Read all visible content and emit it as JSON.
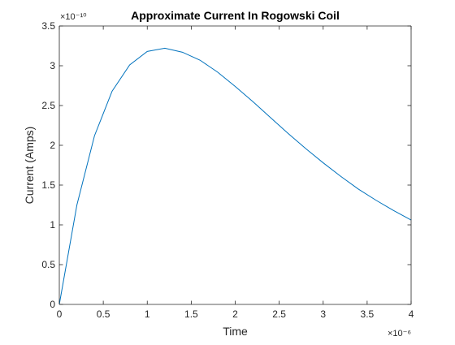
{
  "chart_data": {
    "type": "line",
    "title": "Approximate Current In Rogowski Coil",
    "xlabel": "Time",
    "ylabel": "Current (Amps)",
    "x_exponent_label": "×10⁻⁶",
    "y_exponent_label": "×10⁻¹⁰",
    "xlim": [
      0,
      4e-06
    ],
    "ylim": [
      0,
      3.5e-10
    ],
    "x_ticks": [
      0,
      5e-07,
      1e-06,
      1.5e-06,
      2e-06,
      2.5e-06,
      3e-06,
      3.5e-06,
      4e-06
    ],
    "x_tick_labels": [
      "0",
      "0.5",
      "1",
      "1.5",
      "2",
      "2.5",
      "3",
      "3.5",
      "4"
    ],
    "y_ticks": [
      0,
      5e-11,
      1e-10,
      1.5e-10,
      2e-10,
      2.5e-10,
      3e-10,
      3.5e-10
    ],
    "y_tick_labels": [
      "0",
      "0.5",
      "1",
      "1.5",
      "2",
      "2.5",
      "3",
      "3.5"
    ],
    "grid": false,
    "series": [
      {
        "color": "#0072bd",
        "x": [
          0,
          2e-07,
          4e-07,
          6e-07,
          8e-07,
          1e-06,
          1.2e-06,
          1.4e-06,
          1.6e-06,
          1.8e-06,
          2e-06,
          2.2e-06,
          2.4e-06,
          2.6e-06,
          2.8e-06,
          3e-06,
          3.2e-06,
          3.4e-06,
          3.6e-06,
          3.8e-06,
          4e-06
        ],
        "y": [
          0,
          1.25e-10,
          2.12e-10,
          2.68e-10,
          3.01e-10,
          3.18e-10,
          3.22e-10,
          3.17e-10,
          3.07e-10,
          2.92e-10,
          2.74e-10,
          2.55e-10,
          2.35e-10,
          2.15e-10,
          1.96e-10,
          1.78e-10,
          1.61e-10,
          1.45e-10,
          1.31e-10,
          1.18e-10,
          1.06e-10
        ]
      }
    ]
  }
}
